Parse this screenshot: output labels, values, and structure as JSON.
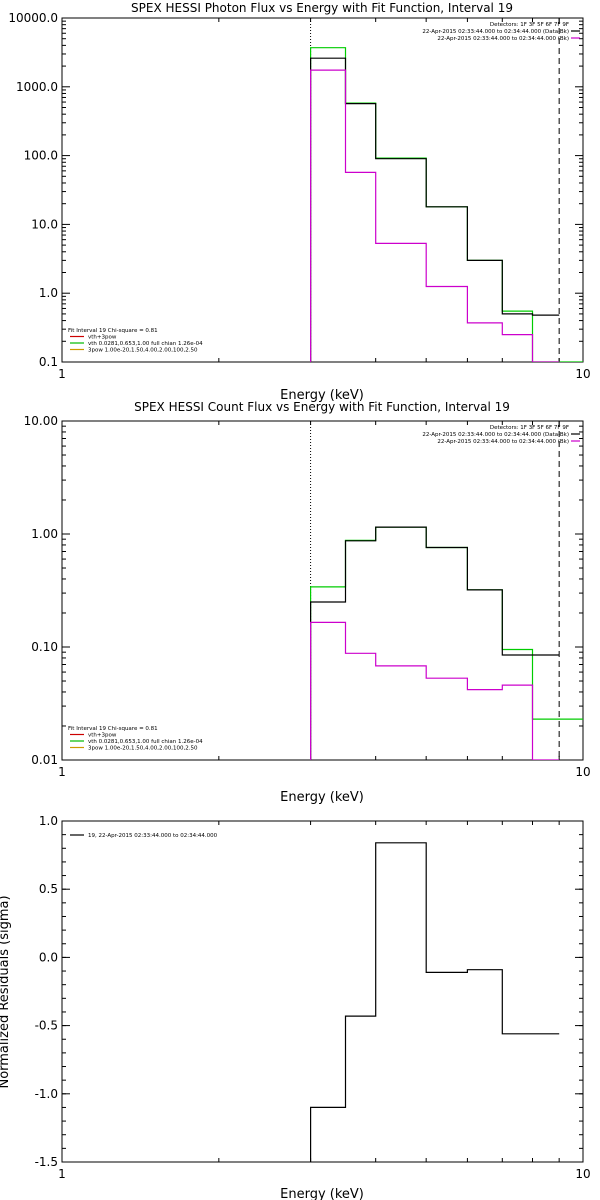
{
  "chart_data": [
    {
      "type": "line",
      "title": "SPEX HESSI Photon Flux vs Energy with Fit Function, Interval 19",
      "xlabel": "Energy (keV)",
      "ylabel": "",
      "xscale": "log",
      "yscale": "log",
      "xlim": [
        1,
        10
      ],
      "ylim": [
        0.1,
        10000
      ],
      "xticks": [
        {
          "v": 1,
          "label": "1"
        },
        {
          "v": 10,
          "label": "10"
        }
      ],
      "yticks": [
        {
          "v": 10000,
          "label": "10000.0"
        },
        {
          "v": 1000,
          "label": "1000.0"
        },
        {
          "v": 100,
          "label": "100.0"
        },
        {
          "v": 10,
          "label": "10.0"
        },
        {
          "v": 1,
          "label": "1.0"
        },
        {
          "v": 0.1,
          "label": "0.1"
        }
      ],
      "header_lines": [
        "Detectors: 1F 3F 5F 6F 7F 9F",
        "22-Apr-2015 02:33:44.000 to 02:34:44.000 (Data-Bk)",
        "22-Apr-2015 02:33:44.000 to 02:34:44.000 (Bk)"
      ],
      "header_colors": [
        "#000000",
        "#000000",
        "#cc00cc"
      ],
      "legend_lines": [
        "Fit Interval 19   Chi-square = 0.81",
        "vth+3pow",
        "vth 0.0281,0.653,1.00  full chian 1.26e-04",
        "3pow 1.00e-20,1.50,4.00,2.00,100,2.50"
      ],
      "legend_colors": [
        "#000000",
        "#cc0000",
        "#00bb00",
        "#cc9900"
      ],
      "vlines": [
        {
          "x": 3.0,
          "style": "dotted"
        },
        {
          "x": 9.0,
          "style": "dashed"
        }
      ],
      "series": [
        {
          "color": "#00cc00",
          "edges": [
            3,
            3.5,
            4,
            5,
            6,
            7,
            8,
            9,
            10
          ],
          "values": [
            3700,
            580,
            92,
            18,
            3.0,
            0.55,
            0.1,
            0.1
          ]
        },
        {
          "color": "#000000",
          "edges": [
            3,
            3.5,
            4,
            5,
            6,
            7,
            8,
            9
          ],
          "values": [
            2600,
            570,
            90,
            18,
            3.0,
            0.5,
            0.48
          ]
        },
        {
          "color": "#cc00cc",
          "edges": [
            3,
            3.5,
            4,
            5,
            6,
            7,
            8,
            9
          ],
          "values": [
            1750,
            57,
            5.3,
            1.25,
            0.37,
            0.25,
            0.05
          ]
        }
      ]
    },
    {
      "type": "line",
      "title": "SPEX HESSI Count Flux vs Energy with Fit Function, Interval 19",
      "xlabel": "Energy (keV)",
      "ylabel": "",
      "xscale": "log",
      "yscale": "log",
      "xlim": [
        1,
        10
      ],
      "ylim": [
        0.01,
        10
      ],
      "xticks": [
        {
          "v": 1,
          "label": "1"
        },
        {
          "v": 10,
          "label": "10"
        }
      ],
      "yticks": [
        {
          "v": 10,
          "label": "10.00"
        },
        {
          "v": 1,
          "label": "1.00"
        },
        {
          "v": 0.1,
          "label": "0.10"
        },
        {
          "v": 0.01,
          "label": "0.01"
        }
      ],
      "header_lines": [
        "Detectors: 1F 3F 5F 6F 7F 9F",
        "22-Apr-2015 02:33:44.000 to 02:34:44.000 (Data-Bk)",
        "22-Apr-2015 02:33:44.000 to 02:34:44.000 (Bk)"
      ],
      "header_colors": [
        "#000000",
        "#000000",
        "#cc00cc"
      ],
      "legend_lines": [
        "Fit Interval 19   Chi-square = 0.81",
        "vth+3pow",
        "vth 0.0281,0.653,1.00  full chian 1.26e-04",
        "3pow 1.00e-20,1.50,4.00,2.00,100,2.50"
      ],
      "legend_colors": [
        "#000000",
        "#cc0000",
        "#00bb00",
        "#cc9900"
      ],
      "vlines": [
        {
          "x": 3.0,
          "style": "dotted"
        },
        {
          "x": 9.0,
          "style": "dashed"
        }
      ],
      "series": [
        {
          "color": "#00cc00",
          "edges": [
            3,
            3.5,
            4,
            5,
            6,
            7,
            8,
            9,
            10
          ],
          "values": [
            0.34,
            0.88,
            1.15,
            0.76,
            0.32,
            0.095,
            0.023,
            0.023
          ]
        },
        {
          "color": "#000000",
          "edges": [
            3,
            3.5,
            4,
            5,
            6,
            7,
            8,
            9
          ],
          "values": [
            0.25,
            0.87,
            1.15,
            0.76,
            0.32,
            0.085,
            0.085
          ]
        },
        {
          "color": "#cc00cc",
          "edges": [
            3,
            3.5,
            4,
            5,
            6,
            7,
            8,
            9
          ],
          "values": [
            0.165,
            0.088,
            0.068,
            0.053,
            0.042,
            0.046,
            0.01
          ]
        }
      ]
    },
    {
      "type": "line",
      "title": "",
      "xlabel": "Energy (keV)",
      "ylabel": "Normalized Residuals (sigma)",
      "xscale": "log",
      "yscale": "linear",
      "xlim": [
        1,
        10
      ],
      "ylim": [
        -1.5,
        1.0
      ],
      "xticks": [
        {
          "v": 1,
          "label": "1"
        },
        {
          "v": 10,
          "label": "10"
        }
      ],
      "yticks": [
        {
          "v": 1.0,
          "label": "1.0"
        },
        {
          "v": 0.5,
          "label": "0.5"
        },
        {
          "v": 0.0,
          "label": "0.0"
        },
        {
          "v": -0.5,
          "label": "-0.5"
        },
        {
          "v": -1.0,
          "label": "-1.0"
        },
        {
          "v": -1.5,
          "label": "-1.5"
        }
      ],
      "legend_lines": [
        "19, 22-Apr-2015 02:33:44.000 to 02:34:44.000"
      ],
      "legend_colors": [
        "#000000"
      ],
      "series": [
        {
          "color": "#000000",
          "edges": [
            3,
            3.5,
            4,
            5,
            6,
            7,
            8,
            9
          ],
          "values": [
            -1.1,
            -0.43,
            0.84,
            -0.11,
            -0.09,
            -0.56,
            -0.56
          ]
        }
      ]
    }
  ]
}
